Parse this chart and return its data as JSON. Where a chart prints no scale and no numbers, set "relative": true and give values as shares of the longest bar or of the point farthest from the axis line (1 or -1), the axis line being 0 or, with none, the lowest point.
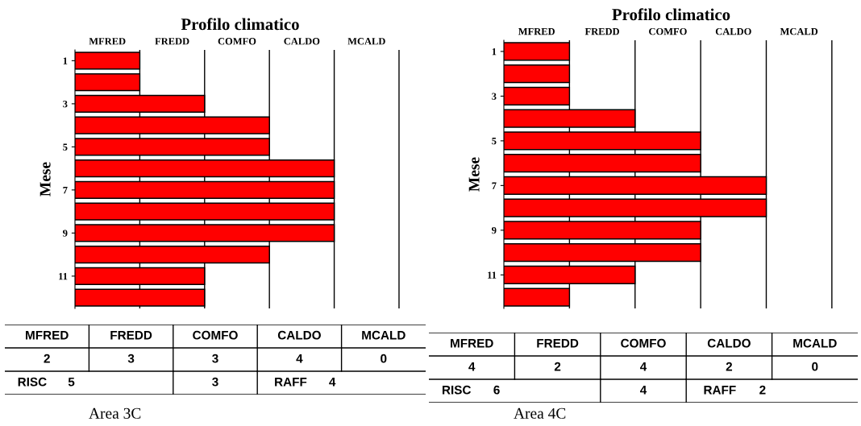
{
  "chart_data": [
    {
      "type": "bar",
      "orientation": "horizontal",
      "relative": true,
      "title": "Profilo climatico",
      "ylabel": "Mese",
      "categories": [
        "1",
        null,
        "3",
        null,
        "5",
        null,
        "7",
        null,
        "9",
        null,
        "11",
        null
      ],
      "values": [
        0.25,
        0.25,
        0.5,
        0.75,
        0.75,
        1,
        1,
        1,
        1,
        0.75,
        0.5,
        0.5
      ],
      "color": "#ff0000",
      "ref_lines": [
        {
          "axis": "x",
          "value": 0.25,
          "color": "#000000"
        },
        {
          "axis": "x",
          "value": 0.5,
          "color": "#000000"
        },
        {
          "axis": "x",
          "value": 0.75,
          "color": "#000000"
        },
        {
          "axis": "x",
          "value": 1,
          "color": "#000000"
        },
        {
          "axis": "x",
          "value": 1.25,
          "color": "#000000"
        }
      ],
      "annotations": [
        "MFRED",
        "FREDD",
        "COMFO",
        "CALDO",
        "MCALD",
        "MFRED",
        "FREDD",
        "COMFO",
        "CALDO",
        "MCALD",
        "2",
        "3",
        "3",
        "4",
        "0",
        "RISC",
        "5",
        "3",
        "RAFF",
        "4",
        "Area 3C"
      ]
    },
    {
      "type": "bar",
      "orientation": "horizontal",
      "relative": true,
      "title": "Profilo climatico",
      "ylabel": "Mese",
      "categories": [
        "1",
        null,
        "3",
        null,
        "5",
        null,
        "7",
        null,
        "9",
        null,
        "11",
        null
      ],
      "values": [
        0.25,
        0.25,
        0.25,
        0.5,
        0.75,
        0.75,
        1,
        1,
        0.75,
        0.75,
        0.5,
        0.25
      ],
      "color": "#ff0000",
      "ref_lines": [
        {
          "axis": "x",
          "value": 0.25,
          "color": "#000000"
        },
        {
          "axis": "x",
          "value": 0.5,
          "color": "#000000"
        },
        {
          "axis": "x",
          "value": 0.75,
          "color": "#000000"
        },
        {
          "axis": "x",
          "value": 1,
          "color": "#000000"
        },
        {
          "axis": "x",
          "value": 1.25,
          "color": "#000000"
        }
      ],
      "annotations": [
        "MFRED",
        "FREDD",
        "COMFO",
        "CALDO",
        "MCALD",
        "MFRED",
        "FREDD",
        "COMFO",
        "CALDO",
        "MCALD",
        "4",
        "2",
        "4",
        "2",
        "0",
        "RISC",
        "6",
        "4",
        "RAFF",
        "2",
        "Area 4C"
      ]
    }
  ]
}
